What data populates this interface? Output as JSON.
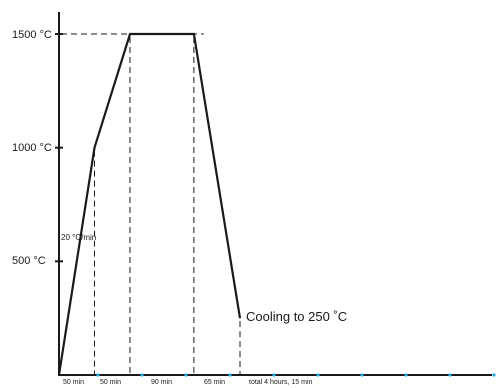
{
  "chart_data": {
    "type": "line",
    "title": "",
    "xlabel": "",
    "ylabel": "",
    "x_unit": "min",
    "y_unit": "°C",
    "ylim": [
      0,
      1500
    ],
    "points": [
      {
        "x": 0,
        "y": 0
      },
      {
        "x": 50,
        "y": 1000
      },
      {
        "x": 100,
        "y": 1500
      },
      {
        "x": 190,
        "y": 1500
      },
      {
        "x": 255,
        "y": 250
      }
    ],
    "y_tick_labels": [
      "500 °C",
      "1000 °C",
      "1500 °C"
    ],
    "y_tick_values": [
      500,
      1000,
      1500
    ],
    "segment_labels": [
      "50 min",
      "50 min",
      "90 min",
      "65 min",
      "total 4 hours, 15 min"
    ],
    "annotations": {
      "rate": "20 °C/min",
      "cooling": "Cooling to 250 ˚C"
    },
    "dot_count": 10,
    "colors": {
      "line": "#1a1a1a",
      "dots": "#29a8e0"
    }
  }
}
